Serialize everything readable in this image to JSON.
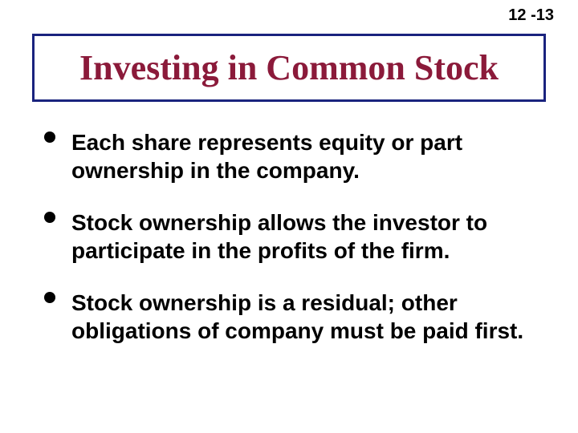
{
  "page_number": "12 -13",
  "title": "Investing in Common Stock",
  "title_box": {
    "border_color": "#1a237e",
    "text_color": "#8b1a3a",
    "border_width": 3
  },
  "bullets": [
    "Each share represents equity or part ownership in the company.",
    "Stock ownership allows the investor to participate in the profits of the firm.",
    "Stock ownership is a residual; other obligations of company must be paid first."
  ],
  "colors": {
    "background": "#ffffff",
    "text": "#000000",
    "bullet_dot": "#000000"
  },
  "typography": {
    "page_number_fontsize": 20,
    "title_fontsize": 44,
    "bullet_fontsize": 28,
    "title_font": "Times New Roman",
    "body_font": "Arial"
  }
}
